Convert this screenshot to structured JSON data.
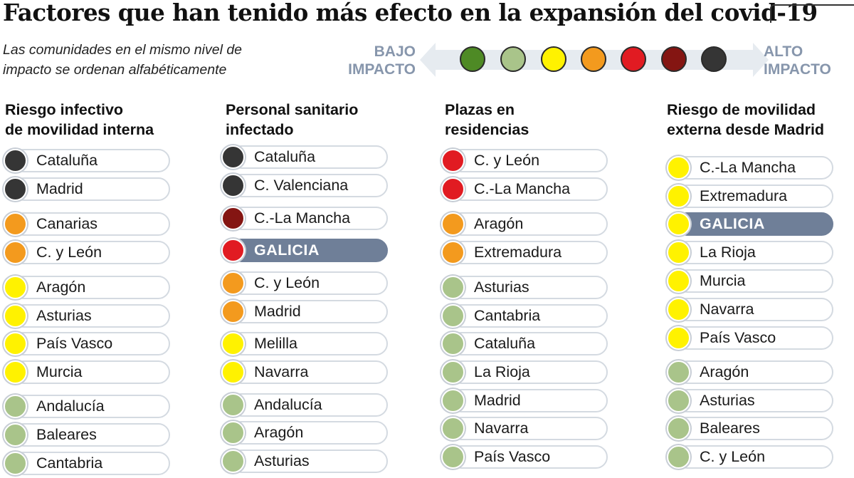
{
  "title": "Factores que han tenido más efecto en la expansión del covid-19",
  "subtitle": [
    "Las comunidades en el mismo nivel de",
    "impacto se ordenan alfabéticamente"
  ],
  "legend": {
    "low_label": [
      "BAJO",
      "IMPACTO"
    ],
    "high_label": [
      "ALTO",
      "IMPACTO"
    ],
    "levels": [
      "#4e8a25",
      "#a9c48a",
      "#fff200",
      "#f39a1e",
      "#e11b22",
      "#841512",
      "#353535"
    ]
  },
  "colors": {
    "dark": "#353535",
    "darkred": "#841512",
    "red": "#e11b22",
    "orange": "#f39a1e",
    "yellow": "#fff200",
    "lightgreen": "#a9c48a",
    "green": "#4e8a25",
    "highlight": "#6f7f98"
  },
  "columns": [
    {
      "title": [
        "Riesgo infectivo",
        "de movilidad interna"
      ],
      "items": [
        {
          "name": "Cataluña",
          "level": "dark"
        },
        {
          "name": "Madrid",
          "level": "dark"
        },
        {
          "name": "Canarias",
          "level": "orange"
        },
        {
          "name": "C. y León",
          "level": "orange"
        },
        {
          "name": "Aragón",
          "level": "yellow"
        },
        {
          "name": "Asturias",
          "level": "yellow"
        },
        {
          "name": "País Vasco",
          "level": "yellow"
        },
        {
          "name": "Murcia",
          "level": "yellow"
        },
        {
          "name": "Andalucía",
          "level": "lightgreen"
        },
        {
          "name": "Baleares",
          "level": "lightgreen"
        },
        {
          "name": "Cantabria",
          "level": "lightgreen"
        }
      ]
    },
    {
      "title": [
        "Personal sanitario",
        "infectado"
      ],
      "items": [
        {
          "name": "Cataluña",
          "level": "dark"
        },
        {
          "name": "C. Valenciana",
          "level": "dark"
        },
        {
          "name": "C.-La Mancha",
          "level": "darkred"
        },
        {
          "name": "GALICIA",
          "level": "red",
          "highlight": true
        },
        {
          "name": "C. y León",
          "level": "orange"
        },
        {
          "name": "Madrid",
          "level": "orange"
        },
        {
          "name": "Melilla",
          "level": "yellow"
        },
        {
          "name": "Navarra",
          "level": "yellow"
        },
        {
          "name": "Andalucía",
          "level": "lightgreen"
        },
        {
          "name": "Aragón",
          "level": "lightgreen"
        },
        {
          "name": "Asturias",
          "level": "lightgreen"
        }
      ]
    },
    {
      "title": [
        "Plazas en",
        "residencias"
      ],
      "items": [
        {
          "name": "C. y León",
          "level": "red"
        },
        {
          "name": "C.-La Mancha",
          "level": "red"
        },
        {
          "name": "Aragón",
          "level": "orange"
        },
        {
          "name": "Extremadura",
          "level": "orange"
        },
        {
          "name": "Asturias",
          "level": "lightgreen"
        },
        {
          "name": "Cantabria",
          "level": "lightgreen"
        },
        {
          "name": "Cataluña",
          "level": "lightgreen"
        },
        {
          "name": "La Rioja",
          "level": "lightgreen"
        },
        {
          "name": "Madrid",
          "level": "lightgreen"
        },
        {
          "name": "Navarra",
          "level": "lightgreen"
        },
        {
          "name": "País Vasco",
          "level": "lightgreen"
        }
      ]
    },
    {
      "title": [
        "Riesgo de movilidad",
        "externa desde Madrid"
      ],
      "items": [
        {
          "name": "C.-La Mancha",
          "level": "yellow"
        },
        {
          "name": "Extremadura",
          "level": "yellow"
        },
        {
          "name": "GALICIA",
          "level": "yellow",
          "highlight": true
        },
        {
          "name": "La Rioja",
          "level": "yellow"
        },
        {
          "name": "Murcia",
          "level": "yellow"
        },
        {
          "name": "Navarra",
          "level": "yellow"
        },
        {
          "name": "País Vasco",
          "level": "yellow"
        },
        {
          "name": "Aragón",
          "level": "lightgreen"
        },
        {
          "name": "Asturias",
          "level": "lightgreen"
        },
        {
          "name": "Baleares",
          "level": "lightgreen"
        },
        {
          "name": "C. y León",
          "level": "lightgreen"
        }
      ]
    }
  ]
}
